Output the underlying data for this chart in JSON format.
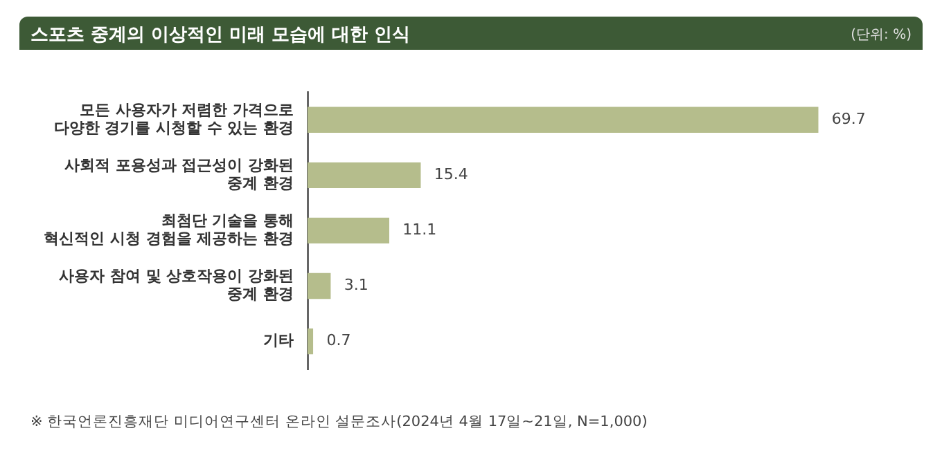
{
  "chart_data": {
    "type": "bar",
    "orientation": "horizontal",
    "title": "스포츠 중계의 이상적인 미래 모습에 대한 인식",
    "subtitle": "(단위: %)",
    "categories": [
      "모든 사용자가 저렴한 가격으로\n다양한 경기를 시청할 수 있는 환경",
      "사회적 포용성과 접근성이 강화된\n중계 환경",
      "최첨단 기술을 통해\n혁신적인 시청 경험을 제공하는 환경",
      "사용자 참여 및 상호작용이 강화된\n중계 환경",
      "기타"
    ],
    "values": [
      69.7,
      15.4,
      11.1,
      3.1,
      0.7
    ],
    "color": "#b5bd8c",
    "tick_labels": "y",
    "grid": false,
    "legend": false,
    "data_labels": true,
    "annotations": [
      "※ 한국언론진흥재단 미디어연구센터 온라인 설문조사(2024년 4월 17일~21일, N=1,000)"
    ]
  }
}
